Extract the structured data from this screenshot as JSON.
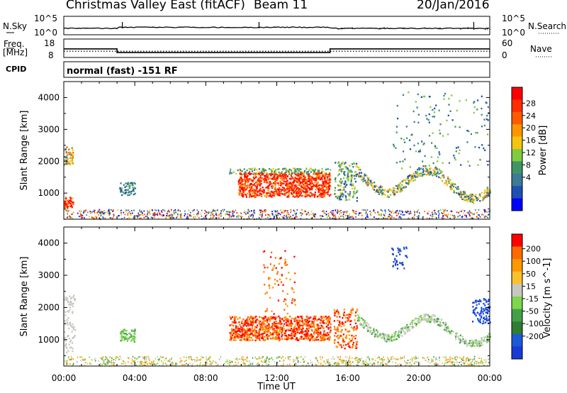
{
  "header": {
    "station": "Christmas Valley East (fitACF)",
    "beam": "Beam 11",
    "date": "20/Jan/2016"
  },
  "strip_labels": {
    "nsky": "N.Sky",
    "nsearch": "N.Search",
    "nsky_hi": "10^5",
    "nsky_lo": "10^0",
    "freq": "Freq.",
    "freq_unit": "[MHz]",
    "freq_hi": "18",
    "freq_lo": "8",
    "nave": "Nave",
    "nave_hi": "60",
    "nave_lo": "0",
    "cpid": "CPID",
    "cpid_text": "normal (fast) -151 RF"
  },
  "colors": {
    "power_scale": [
      "#0000ff",
      "#1f4fb4",
      "#3c7a96",
      "#419464",
      "#7fcc3f",
      "#f4c40f",
      "#ff9600",
      "#ff5a00",
      "#ff2d00",
      "#ff0000"
    ],
    "velocity_scale": [
      "#1a3ad6",
      "#1c5ad8",
      "#2e7d32",
      "#43a047",
      "#7cd74a",
      "#c8c8c0",
      "#fbc02d",
      "#ff9800",
      "#ff6a00",
      "#ff0000"
    ],
    "frame": "#000000"
  },
  "chart_data": [
    {
      "type": "line",
      "id": "nsky-nsearch",
      "series": [
        {
          "name": "N.Sky",
          "style": "solid"
        },
        {
          "name": "N.Search",
          "style": "dotted"
        }
      ],
      "ylim_log10": [
        0,
        5
      ]
    },
    {
      "type": "line",
      "id": "freq-nave",
      "series": [
        {
          "name": "Freq.",
          "style": "solid",
          "points": [
            [
              0,
              11.5
            ],
            [
              3.0,
              11.5
            ],
            [
              3.0,
              9.5
            ],
            [
              15.0,
              9.5
            ],
            [
              15.0,
              11.5
            ],
            [
              24.0,
              11.5
            ]
          ]
        },
        {
          "name": "Nave",
          "style": "dotted",
          "points": [
            [
              0,
              10.2
            ],
            [
              24.0,
              10.2
            ]
          ]
        }
      ],
      "ylim_mhz": [
        8,
        18
      ],
      "ylim_nave": [
        0,
        60
      ]
    },
    {
      "type": "heatmap",
      "id": "power",
      "ylabel": "Slant Range [km]",
      "yticks": [
        1000,
        2000,
        3000,
        4000
      ],
      "ylim": [
        180,
        4500
      ],
      "xlim_hours": [
        0,
        24
      ],
      "colorbar_label": "Power [dB]",
      "colorbar_ticks": [
        4,
        8,
        12,
        16,
        20,
        24,
        28
      ],
      "colorbar_range": [
        0,
        30
      ]
    },
    {
      "type": "heatmap",
      "id": "velocity",
      "ylabel": "Slant Range [km]",
      "yticks": [
        1000,
        2000,
        3000,
        4000
      ],
      "ylim": [
        180,
        4500
      ],
      "xlim_hours": [
        0,
        24
      ],
      "xlabel": "Time UT",
      "xtick_labels": [
        "00:00",
        "04:00",
        "08:00",
        "12:00",
        "16:00",
        "20:00",
        "00:00"
      ],
      "colorbar_label": "Velocity [m s^-1]",
      "colorbar_ticks": [
        200,
        100,
        50,
        15,
        -15,
        -50,
        -100,
        -200
      ]
    }
  ]
}
